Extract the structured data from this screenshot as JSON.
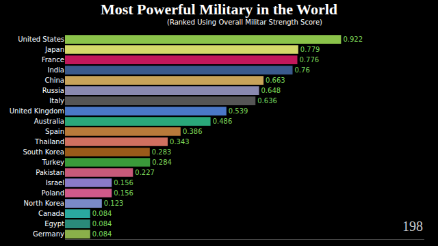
{
  "chart_data": {
    "type": "bar",
    "orientation": "horizontal",
    "title": "Most Powerful Military in the World",
    "subtitle": "(Ranked Using Overall Militar Strength Score)",
    "annotations": [
      {
        "text": "198"
      }
    ],
    "categories": [
      "United States",
      "Japan",
      "France",
      "India",
      "China",
      "Russia",
      "Italy",
      "United Kingdom",
      "Australia",
      "Spain",
      "Thailand",
      "South Korea",
      "Turkey",
      "Pakistan",
      "Israel",
      "Poland",
      "North Korea",
      "Canada",
      "Egypt",
      "Germany"
    ],
    "values": [
      0.922,
      0.779,
      0.776,
      0.76,
      0.663,
      0.648,
      0.636,
      0.539,
      0.486,
      0.386,
      0.343,
      0.283,
      0.284,
      0.227,
      0.156,
      0.156,
      0.123,
      0.084,
      0.084,
      0.084
    ],
    "colors": [
      "#8bc34a",
      "#d4d96a",
      "#c2185b",
      "#3a5a8c",
      "#c8a45a",
      "#8a8ab0",
      "#555555",
      "#4a78c8",
      "#2aa87a",
      "#b87a3a",
      "#d07060",
      "#9a5a1a",
      "#3a9a3a",
      "#c85a7a",
      "#8a7ac8",
      "#d05a8a",
      "#7a8ac8",
      "#2aa8a0",
      "#2a8a7a",
      "#8ab04a"
    ],
    "xlim": [
      0,
      1.2
    ],
    "data_labels": true,
    "tick_labels": "y",
    "grid": false
  }
}
